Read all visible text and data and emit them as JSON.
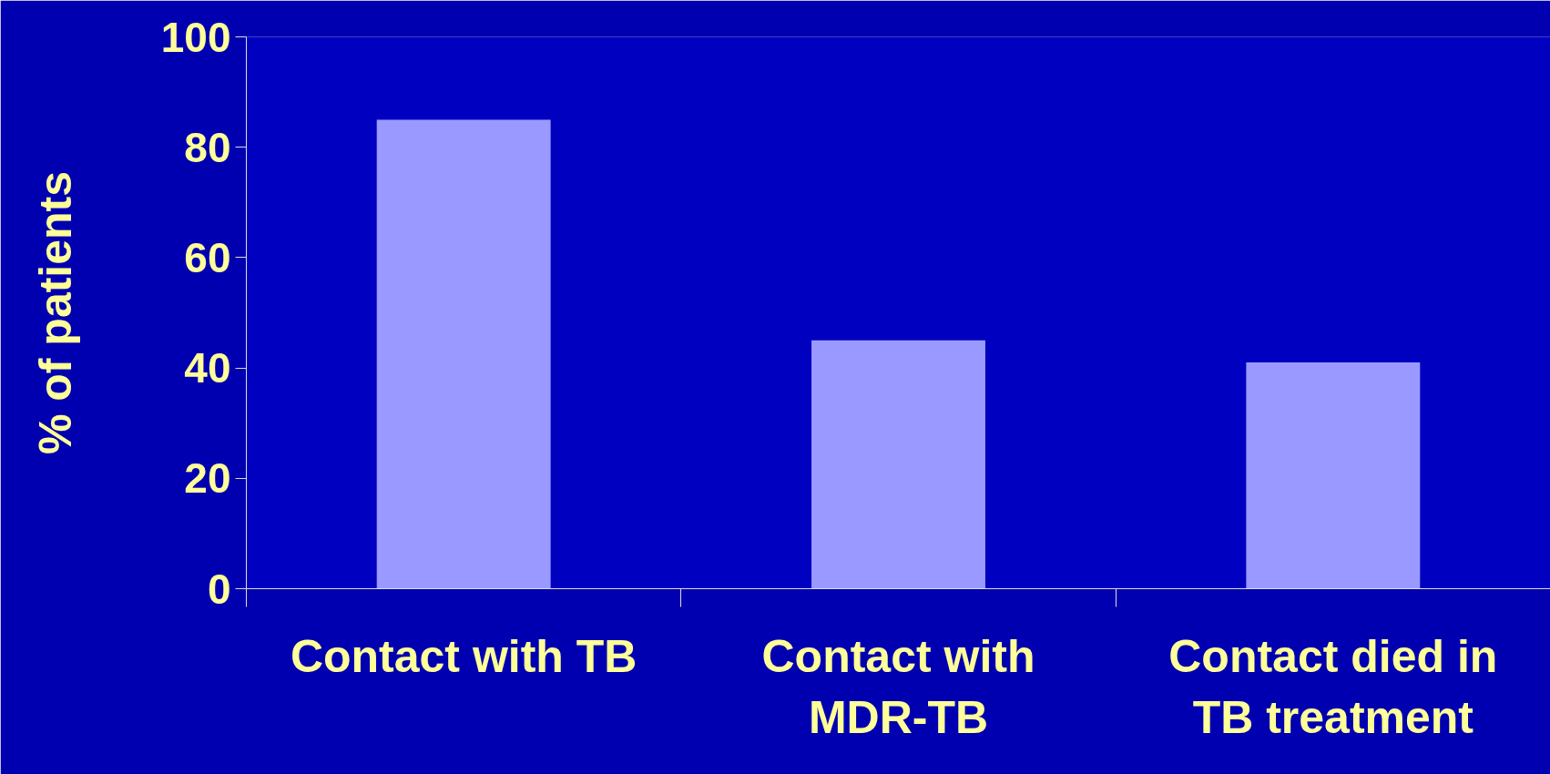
{
  "chart_data": {
    "type": "bar",
    "ylabel": "% of patients",
    "categories": [
      "Contact with TB",
      "Contact with MDR-TB",
      "Contact died in TB treatment"
    ],
    "values": [
      85,
      45,
      41
    ],
    "color": "#9999ff",
    "ylim": [
      0,
      100
    ],
    "yticks": [
      0,
      20,
      40,
      60,
      80,
      100
    ],
    "grid": false
  }
}
